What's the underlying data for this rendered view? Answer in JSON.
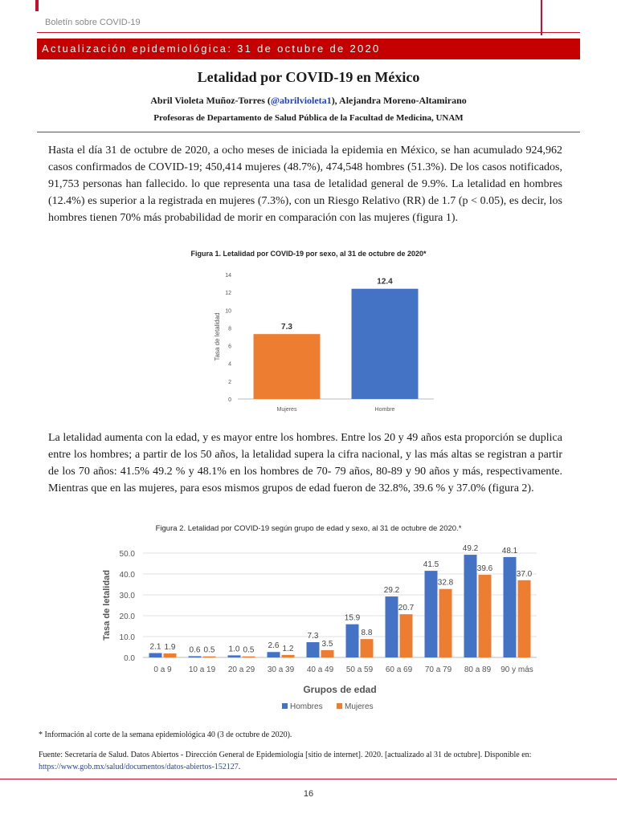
{
  "header": {
    "bulletin": "Boletín sobre COVID-19",
    "banner": "Actualización epidemiológica: 31 de octubre de 2020"
  },
  "article": {
    "title": "Letalidad por COVID-19 en México",
    "author1": "Abril Violeta Muñoz-Torres (",
    "handle": "@abrilvioleta1",
    "author2": "), Alejandra Moreno-Altamirano",
    "affiliation": "Profesoras de Departamento de Salud Pública de la Facultad de Medicina, UNAM",
    "paragraph1": "Hasta el día 31 de octubre de 2020, a ocho meses de iniciada la epidemia en México, se han acumulado 924,962 casos confirmados de COVID-19; 450,414 mujeres (48.7%), 474,548 hombres (51.3%). De los casos notificados, 91,753 personas han fallecido. lo que representa una tasa de letalidad general de 9.9%. La letalidad en hombres (12.4%) es superior a la registrada en mujeres (7.3%), con un Riesgo Relativo (RR) de 1.7 (p < 0.05), es decir, los hombres tienen 70% más probabilidad de morir en comparación con las mujeres (figura 1).",
    "paragraph2": "La letalidad aumenta con la edad, y es mayor entre los hombres. Entre los 20 y 49 años esta proporción se duplica entre los hombres; a partir de los 50 años, la letalidad supera la cifra nacional, y las más altas se registran a partir de los 70 años: 41.5% 49.2 % y 48.1% en los hombres de 70- 79 años, 80-89 y 90 años y más, respectivamente. Mientras que en las mujeres, para esos mismos grupos de edad fueron de 32.8%, 39.6 % y 37.0% (figura 2).",
    "footnote": "* Información al corte de la semana epidemiológica 40 (3 de octubre de 2020).",
    "source": "Fuente: Secretaría de Salud. Datos Abiertos - Dirección General de Epidemiología [sitio de internet]. 2020. [actualizado al 31 de octubre]. Disponible en: ",
    "source_link": "https://www.gob.mx/salud/documentos/datos-abiertos-152127",
    "source_end": ".",
    "page_number": "16"
  },
  "colors": {
    "banner": "#c40000",
    "accent": "#c8102e",
    "hombres": "#4472c4",
    "mujeres": "#ed7d31"
  },
  "chart_data": [
    {
      "type": "bar",
      "title": "Figura 1.  Letalidad por COVID-19 por sexo, al 31 de octubre de 2020*",
      "ylabel": "Tasa de letalidad",
      "xlabel": "",
      "categories": [
        "Mujeres",
        "Hombre"
      ],
      "values": [
        7.3,
        12.4
      ],
      "value_labels": [
        "7.3",
        "12.4"
      ],
      "yticks": [
        "0",
        "2",
        "4",
        "6",
        "8",
        "10",
        "12",
        "14"
      ],
      "ylim": [
        0,
        14
      ],
      "colors": [
        "#ed7d31",
        "#4472c4"
      ],
      "grid": false,
      "legend": "none"
    },
    {
      "type": "bar",
      "title": "Figura 2. Letalidad por COVID-19 según grupo de edad y sexo, al 31 de octubre de 2020.*",
      "ylabel": "Tasa de letalidad",
      "xlabel": "Grupos de edad",
      "categories": [
        "0 a 9",
        "10 a 19",
        "20 a 29",
        "30 a 39",
        "40 a 49",
        "50 a 59",
        "60 a 69",
        "70 a 79",
        "80 a 89",
        "90 y más"
      ],
      "series": [
        {
          "name": "Hombres",
          "values": [
            2.1,
            0.6,
            1.0,
            2.6,
            7.3,
            15.9,
            29.2,
            41.5,
            49.2,
            48.1
          ],
          "labels": [
            "2.1",
            "0.6",
            "1.0",
            "2.6",
            "7.3",
            "15.9",
            "29.2",
            "41.5",
            "49.2",
            "48.1"
          ]
        },
        {
          "name": "Mujeres",
          "values": [
            1.9,
            0.5,
            0.5,
            1.2,
            3.5,
            8.8,
            20.7,
            32.8,
            39.6,
            37.0
          ],
          "labels": [
            "1.9",
            "0.5",
            "0.5",
            "1.2",
            "3.5",
            "8.8",
            "20.7",
            "32.8",
            "39.6",
            "37.0"
          ]
        }
      ],
      "yticks": [
        "0.0",
        "10.0",
        "20.0",
        "30.0",
        "40.0",
        "50.0"
      ],
      "ylim": [
        0,
        50
      ],
      "grid": true,
      "legend": "bottom"
    }
  ]
}
